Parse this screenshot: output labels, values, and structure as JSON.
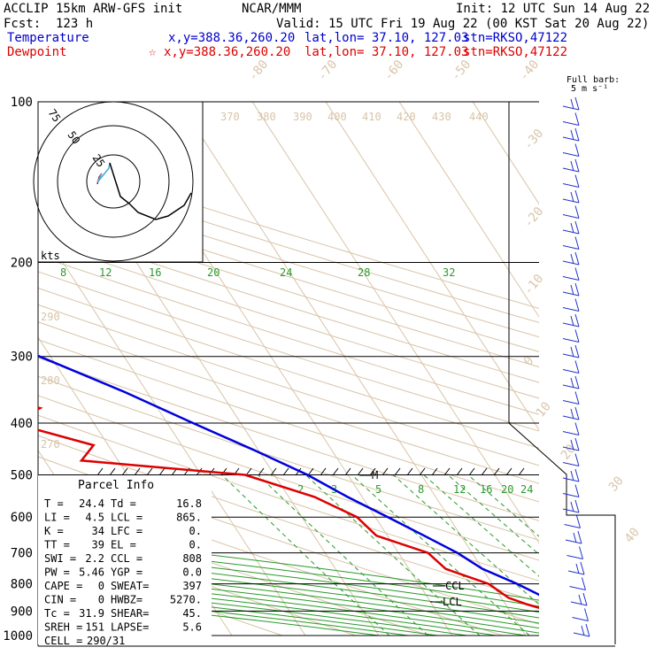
{
  "header": {
    "model": "ACCLIP 15km ARW-GFS init",
    "org": "NCAR/MMM",
    "init": "Init: 12 UTC Sun 14 Aug 22",
    "fcst": "Fcst:  123 h",
    "valid": "Valid: 15 UTC Fri 19 Aug 22 (00 KST Sat 20 Aug 22)",
    "temp_label": "Temperature",
    "temp_xy": "x,y=388.36,260.20",
    "temp_latlon": "lat,lon= 37.10, 127.03",
    "temp_stn": "stn=RKSO,47122",
    "dew_label": "Dewpoint",
    "dew_marker": "☆",
    "dew_xy": "x,y=388.36,260.20",
    "dew_latlon": "lat,lon= 37.10, 127.03",
    "dew_stn": "stn=RKSO,47122"
  },
  "barb_label": [
    "Full barb:",
    "5 m s⁻¹"
  ],
  "hodograph": {
    "rings": [
      "75",
      "50",
      "25"
    ],
    "units": "kts"
  },
  "parcel": {
    "title": "Parcel Info",
    "rows": [
      [
        "T   =",
        "24.4",
        "Td  =",
        "16.8"
      ],
      [
        "LI  =",
        "4.5",
        "LCL =",
        "865."
      ],
      [
        "K   =",
        "34",
        "LFC =",
        "0."
      ],
      [
        "TT  =",
        "39",
        "EL  =",
        "0."
      ],
      [
        "SWI =",
        "2.2",
        "CCL =",
        "808"
      ],
      [
        "PW  =",
        "5.46",
        "YGP =",
        "0.0"
      ],
      [
        "CAPE =",
        "0",
        "SWEAT=",
        "397"
      ],
      [
        "CIN  =",
        "0",
        "HWBZ=",
        "5270."
      ],
      [
        "Tc  =",
        "31.9",
        "SHEAR=",
        "45."
      ],
      [
        "SREH =",
        "151",
        "LAPSE=",
        "5.6"
      ],
      [
        "CELL =",
        "290/31",
        "",
        ""
      ]
    ]
  },
  "chart_data": {
    "type": "line",
    "subtype": "skew-T log-p sounding",
    "y_axis": "pressure (hPa)",
    "y_scale": "log",
    "ylim": [
      1000,
      100
    ],
    "pressure_ticks": [
      100,
      200,
      300,
      400,
      500,
      600,
      700,
      800,
      900,
      1000
    ],
    "temperature_ticks": [
      "-80",
      "-70",
      "-60",
      "-50",
      "-40",
      "-30",
      "-20",
      "-10",
      "0",
      "10",
      "20",
      "30",
      "40"
    ],
    "theta_labels": [
      "370",
      "380",
      "390",
      "400",
      "410",
      "420",
      "430",
      "440",
      "290",
      "280",
      "270"
    ],
    "mixing_ratio_upper": [
      "8",
      "12",
      "16",
      "20",
      "24",
      "28",
      "32"
    ],
    "mixing_ratio_lower": [
      "2",
      "3",
      "5",
      "8",
      "12",
      "16",
      "20",
      "24"
    ],
    "annotations": [
      "CCL",
      "LCL",
      "M"
    ],
    "series": [
      {
        "name": "Temperature",
        "color": "#0000dd",
        "points": [
          [
            1000,
            25.0
          ],
          [
            975,
            23.0
          ],
          [
            950,
            21.0
          ],
          [
            925,
            19.0
          ],
          [
            900,
            18.0
          ],
          [
            850,
            16.0
          ],
          [
            800,
            13.4
          ],
          [
            750,
            10.0
          ],
          [
            700,
            8.0
          ],
          [
            650,
            5.0
          ],
          [
            600,
            1.7
          ],
          [
            550,
            -2.0
          ],
          [
            500,
            -5.5
          ],
          [
            450,
            -10.5
          ],
          [
            400,
            -16.5
          ],
          [
            350,
            -23.0
          ],
          [
            300,
            -31.5
          ],
          [
            250,
            -41.0
          ],
          [
            200,
            -52.0
          ],
          [
            175,
            -58.0
          ],
          [
            150,
            -66.0
          ],
          [
            125,
            -73.0
          ],
          [
            110,
            -76.0
          ],
          [
            100,
            -76.5
          ]
        ]
      },
      {
        "name": "Dewpoint",
        "color": "#dd0000",
        "points": [
          [
            1000,
            15.5
          ],
          [
            975,
            16.5
          ],
          [
            950,
            16.5
          ],
          [
            925,
            17.0
          ],
          [
            900,
            15.5
          ],
          [
            875,
            13.0
          ],
          [
            850,
            11.0
          ],
          [
            800,
            9.5
          ],
          [
            750,
            5.0
          ],
          [
            700,
            4.0
          ],
          [
            650,
            -1.5
          ],
          [
            600,
            -2.5
          ],
          [
            550,
            -6.5
          ],
          [
            500,
            -14.0
          ],
          [
            470,
            -35.0
          ],
          [
            440,
            -32.0
          ],
          [
            400,
            -41.0
          ],
          [
            375,
            -36.0
          ],
          [
            350,
            -44.0
          ],
          [
            325,
            -35.0
          ],
          [
            300,
            -36.0
          ],
          [
            275,
            -50.0
          ],
          [
            250,
            -52.0
          ],
          [
            225,
            -52.0
          ],
          [
            200,
            -48.0
          ],
          [
            175,
            -61.0
          ],
          [
            150,
            -75.0
          ],
          [
            125,
            -77.0
          ],
          [
            100,
            -70.0
          ]
        ]
      }
    ],
    "hodograph_trace": [
      [
        0.0,
        20.0
      ],
      [
        2.5,
        20.0
      ],
      [
        2.0,
        24.0
      ],
      [
        4.0,
        26.0
      ],
      [
        5.0,
        28.0
      ],
      [
        3.0,
        32.0
      ],
      [
        -2.0,
        34.0
      ],
      [
        -6.0,
        38.0
      ],
      [
        -10.0,
        41.0
      ],
      [
        -14.0,
        44.0
      ],
      [
        -17.0,
        43.0
      ],
      [
        -20.0,
        39.0
      ],
      [
        -21.0,
        34.0
      ]
    ]
  }
}
